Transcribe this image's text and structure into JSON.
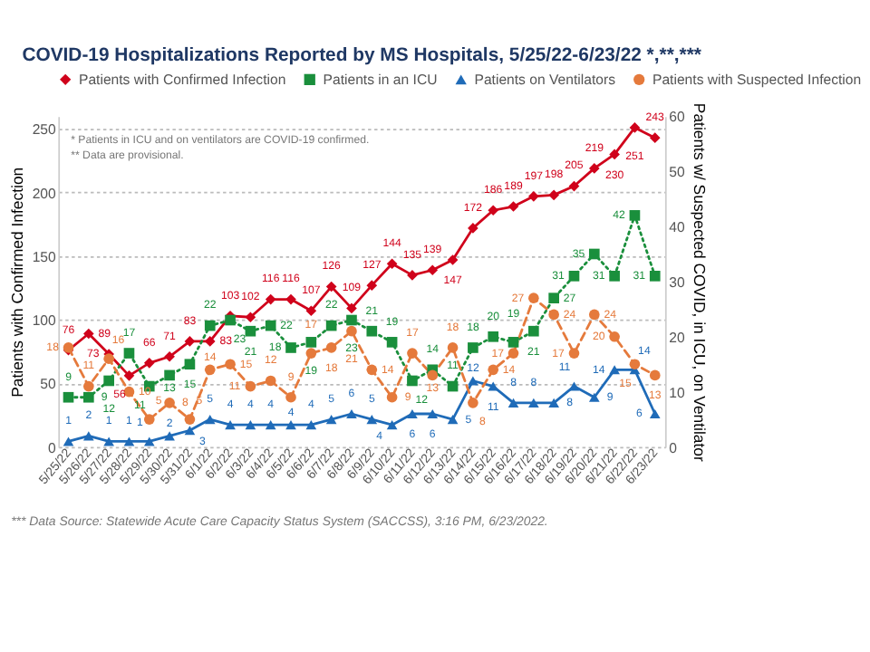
{
  "chart_data": {
    "type": "line",
    "title": "COVID-19 Hospitalizations Reported by MS Hospitals, 5/25/22-6/23/22 *,**,***",
    "categories": [
      "5/25/22",
      "5/26/22",
      "5/27/22",
      "5/28/22",
      "5/29/22",
      "5/30/22",
      "5/31/22",
      "6/1/22",
      "6/2/22",
      "6/3/22",
      "6/4/22",
      "6/5/22",
      "6/6/22",
      "6/7/22",
      "6/8/22",
      "6/9/22",
      "6/10/22",
      "6/11/22",
      "6/12/22",
      "6/13/22",
      "6/14/22",
      "6/15/22",
      "6/16/22",
      "6/17/22",
      "6/18/22",
      "6/19/22",
      "6/20/22",
      "6/21/22",
      "6/22/22",
      "6/23/22"
    ],
    "series": [
      {
        "name": "Patients with Confirmed Infection",
        "color": "#d0021b",
        "marker": "diamond",
        "line_style": "solid",
        "values": [
          76,
          89,
          73,
          56,
          66,
          71,
          83,
          83,
          103,
          102,
          116,
          116,
          107,
          126,
          109,
          127,
          144,
          135,
          139,
          147,
          172,
          186,
          189,
          197,
          198,
          205,
          219,
          230,
          251,
          243
        ]
      },
      {
        "name": "Patients in an ICU",
        "color": "#1a8f3c",
        "marker": "square",
        "line_style": "dotted",
        "axis": "y2",
        "values": [
          9,
          9,
          12,
          17,
          11,
          13,
          15,
          22,
          23,
          21,
          22,
          18,
          19,
          22,
          23,
          21,
          19,
          12,
          14,
          11,
          18,
          20,
          19,
          21,
          27,
          31,
          35,
          31,
          42,
          31
        ]
      },
      {
        "name": "Patients on Ventilators",
        "color": "#1f6bb8",
        "marker": "triangle",
        "line_style": "solid",
        "axis": "y2",
        "values": [
          1,
          2,
          1,
          1,
          1,
          2,
          3,
          5,
          4,
          4,
          4,
          4,
          4,
          5,
          6,
          5,
          4,
          6,
          6,
          5,
          12,
          11,
          8,
          8,
          8,
          11,
          9,
          14,
          14,
          6
        ]
      },
      {
        "name": "Patients with Suspected Infection",
        "color": "#e57a3c",
        "marker": "circle",
        "line_style": "dashed",
        "axis": "y2",
        "values": [
          18,
          11,
          16,
          10,
          5,
          8,
          5,
          14,
          15,
          11,
          12,
          9,
          17,
          18,
          21,
          14,
          9,
          17,
          13,
          18,
          8,
          14,
          17,
          27,
          24,
          17,
          24,
          20,
          15,
          13
        ]
      }
    ],
    "ylabel": "Patients with Confirmed Infection",
    "y2label": "Patients w/ Suspected COVID, in ICU, on Ventilator",
    "ylim": [
      0,
      260
    ],
    "yticks": [
      0,
      50,
      100,
      150,
      200,
      250
    ],
    "y2lim": [
      0,
      60
    ],
    "y2ticks": [
      0,
      10,
      20,
      30,
      40,
      50,
      60
    ],
    "grid": "y",
    "legend": "top",
    "data_labels": true,
    "annotations": [
      "* Patients in ICU and on ventilators are COVID-19 confirmed.",
      "** Data are provisional.",
      "*** Data Source: Statewide Acute Care Capacity Status System (SACCSS), 3:16 PM, 6/23/2022."
    ]
  }
}
